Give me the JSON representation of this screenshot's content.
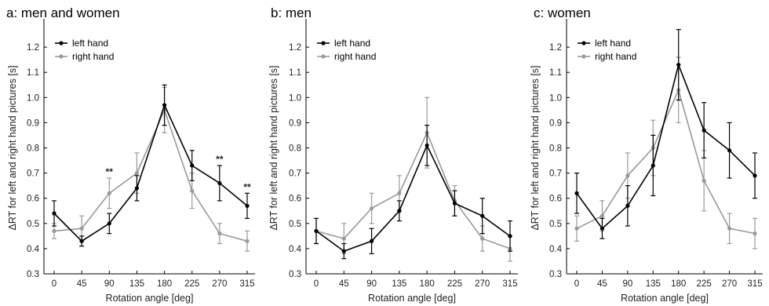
{
  "chart_data": [
    {
      "type": "line",
      "title": "a: men and women",
      "xlabel": "Rotation angle [deg]",
      "ylabel": "ΔRT for left and right hand pictures [s]",
      "x": [
        0,
        45,
        90,
        135,
        180,
        225,
        270,
        315
      ],
      "xticks": [
        "0",
        "45",
        "90",
        "135",
        "180",
        "225",
        "270",
        "315"
      ],
      "ylim": [
        0.3,
        1.3
      ],
      "yticks": [
        "0.3",
        "0.4",
        "0.5",
        "0.6",
        "0.7",
        "0.8",
        "0.9",
        "1.0",
        "1.1",
        "1.2"
      ],
      "legend_position": "top-left",
      "series": [
        {
          "name": "left hand",
          "color": "#000000",
          "values": [
            0.54,
            0.43,
            0.5,
            0.64,
            0.97,
            0.73,
            0.66,
            0.57
          ],
          "errors": [
            0.05,
            0.02,
            0.04,
            0.05,
            0.08,
            0.06,
            0.07,
            0.05
          ]
        },
        {
          "name": "right hand",
          "color": "#999999",
          "values": [
            0.47,
            0.48,
            0.62,
            0.7,
            0.95,
            0.63,
            0.46,
            0.43
          ],
          "errors": [
            0.03,
            0.05,
            0.06,
            0.08,
            0.09,
            0.07,
            0.04,
            0.04
          ]
        }
      ],
      "annotations": [
        {
          "x": 90,
          "text": "**"
        },
        {
          "x": 270,
          "text": "**"
        },
        {
          "x": 315,
          "text": "**"
        }
      ]
    },
    {
      "type": "line",
      "title": "b: men",
      "xlabel": "Rotation angle [deg]",
      "ylabel": "ΔRT for left and right hand pictures [s]",
      "x": [
        0,
        45,
        90,
        135,
        180,
        225,
        270,
        315
      ],
      "xticks": [
        "0",
        "45",
        "90",
        "135",
        "180",
        "225",
        "270",
        "315"
      ],
      "ylim": [
        0.3,
        1.3
      ],
      "yticks": [
        "0.3",
        "0.4",
        "0.5",
        "0.6",
        "0.7",
        "0.8",
        "0.9",
        "1.0",
        "1.1",
        "1.2"
      ],
      "legend_position": "top-left",
      "series": [
        {
          "name": "left hand",
          "color": "#000000",
          "values": [
            0.47,
            0.39,
            0.43,
            0.55,
            0.81,
            0.58,
            0.53,
            0.45
          ],
          "errors": [
            0.05,
            0.03,
            0.05,
            0.04,
            0.08,
            0.05,
            0.07,
            0.06
          ]
        },
        {
          "name": "right hand",
          "color": "#999999",
          "values": [
            0.47,
            0.44,
            0.56,
            0.62,
            0.86,
            0.59,
            0.44,
            0.4
          ],
          "errors": [
            0.05,
            0.06,
            0.06,
            0.07,
            0.14,
            0.06,
            0.05,
            0.05
          ]
        }
      ],
      "annotations": []
    },
    {
      "type": "line",
      "title": "c: women",
      "xlabel": "Rotation angle [deg]",
      "ylabel": "ΔRT for left and right hand pictures [s]",
      "x": [
        0,
        45,
        90,
        135,
        180,
        225,
        270,
        315
      ],
      "xticks": [
        "0",
        "45",
        "90",
        "135",
        "180",
        "225",
        "270",
        "315"
      ],
      "ylim": [
        0.3,
        1.3
      ],
      "yticks": [
        "0.3",
        "0.4",
        "0.5",
        "0.6",
        "0.7",
        "0.8",
        "0.9",
        "1.0",
        "1.1",
        "1.2"
      ],
      "legend_position": "top-left",
      "series": [
        {
          "name": "left hand",
          "color": "#000000",
          "values": [
            0.62,
            0.48,
            0.57,
            0.73,
            1.13,
            0.87,
            0.79,
            0.69
          ],
          "errors": [
            0.08,
            0.04,
            0.08,
            0.12,
            0.14,
            0.11,
            0.11,
            0.09
          ]
        },
        {
          "name": "right hand",
          "color": "#999999",
          "values": [
            0.48,
            0.53,
            0.69,
            0.8,
            1.03,
            0.67,
            0.48,
            0.46
          ],
          "errors": [
            0.05,
            0.06,
            0.09,
            0.11,
            0.13,
            0.12,
            0.06,
            0.06
          ]
        }
      ],
      "annotations": []
    }
  ]
}
